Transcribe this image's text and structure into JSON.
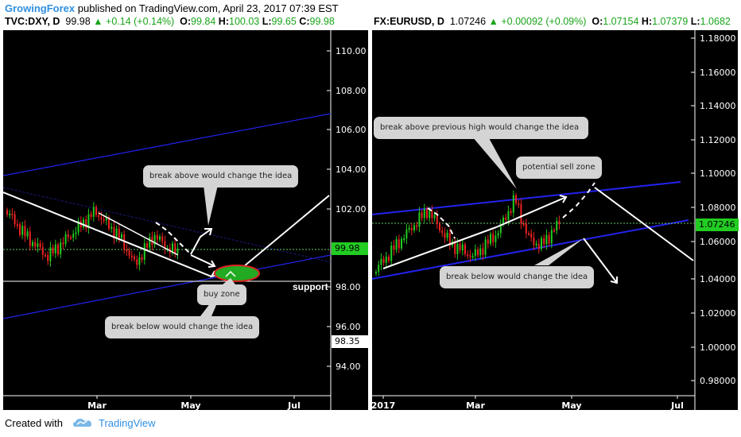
{
  "header": {
    "author": "GrowingForex",
    "published_text": "published on TradingView.com, April 23, 2017 07:39 EST"
  },
  "left_chart": {
    "symbol": "TVC:DXY, D",
    "last": "99.98",
    "change": "▲ +0.14 (+0.14%)",
    "open_label": "O:",
    "open": "99.84",
    "high_label": "H:",
    "high": "100.03",
    "low_label": "L:",
    "low": "99.65",
    "close_label": "C:",
    "close": "99.98",
    "y_ticks": [
      "110.00",
      "108.00",
      "106.00",
      "104.00",
      "102.00",
      "98.00",
      "96.00",
      "94.00"
    ],
    "x_ticks": [
      "Mar",
      "May",
      "Jul"
    ],
    "price_tag": "99.98",
    "support_tag": "98.35",
    "support_label": "support",
    "notes": {
      "break_above": "break above would change the idea",
      "buy_zone": "buy zone",
      "break_below": "break below would change the idea"
    }
  },
  "right_chart": {
    "symbol": "FX:EURUSD, D",
    "last": "1.07246",
    "change": "▲ +0.00092 (+0.09%)",
    "open_label": "O:",
    "open": "1.07154",
    "high_label": "H:",
    "high": "1.07379",
    "low_label": "L:",
    "low": "1.0682",
    "y_ticks": [
      "1.18000",
      "1.16000",
      "1.14000",
      "1.12000",
      "1.10000",
      "1.08000",
      "1.06000",
      "1.04000",
      "1.02000",
      "1.00000",
      "0.98000"
    ],
    "x_ticks": [
      "2017",
      "Mar",
      "May",
      "Jul"
    ],
    "price_tag": "1.07246",
    "notes": {
      "break_above_high": "break above previous high would change the idea",
      "sell_zone": "potential sell zone",
      "break_below": "break below would change the idea"
    }
  },
  "footer": {
    "created_with": "Created with",
    "brand": "TradingView"
  },
  "colors": {
    "bull": "#22cc22",
    "bear": "#ee2222",
    "channel": "#2222ee",
    "price_line": "#66cc66",
    "zone_fill": "#22aa22",
    "zone_border": "#dd2222",
    "link": "#2f8fe0"
  }
}
